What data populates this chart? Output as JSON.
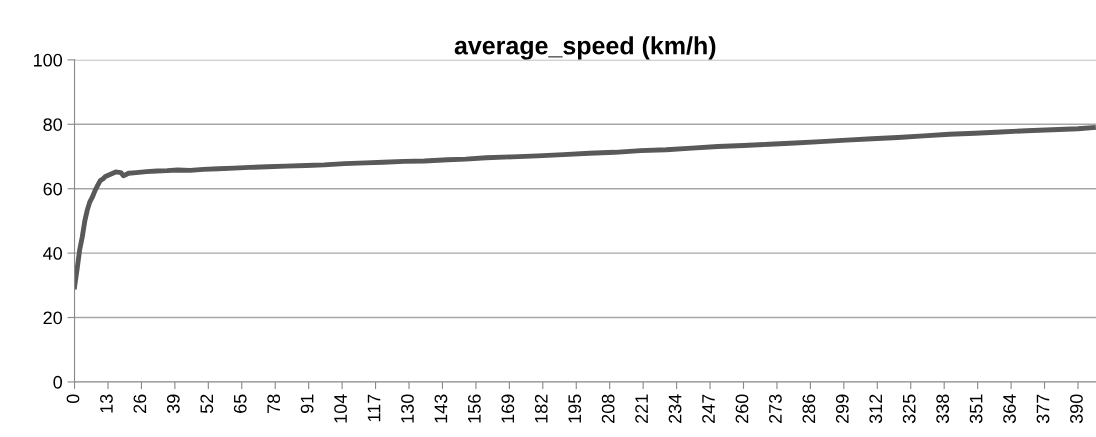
{
  "chart_data": {
    "type": "line",
    "title": "average_speed (km/h)",
    "x": [
      0,
      1,
      2,
      3,
      4,
      5,
      6,
      7,
      8,
      9,
      10,
      11,
      12,
      14,
      16,
      18,
      19,
      21,
      24,
      28,
      32,
      36,
      40,
      45,
      50,
      56,
      62,
      68,
      75,
      82,
      90,
      97,
      105,
      113,
      120,
      128,
      136,
      145,
      152,
      160,
      170,
      180,
      190,
      200,
      210,
      220,
      230,
      240,
      250,
      260,
      270,
      280,
      290,
      300,
      310,
      320,
      330,
      340,
      350,
      360,
      370,
      380,
      390,
      396
    ],
    "series": [
      {
        "color": "#595959",
        "values": [
          29.5,
          35,
          41,
          45,
          50,
          53.5,
          56,
          57.5,
          59.5,
          61,
          62.5,
          63,
          63.8,
          64.5,
          65.2,
          65,
          64,
          64.8,
          65,
          65.3,
          65.5,
          65.6,
          65.8,
          65.7,
          66,
          66.2,
          66.4,
          66.6,
          66.8,
          67,
          67.2,
          67.4,
          67.8,
          68,
          68.2,
          68.5,
          68.6,
          69,
          69.2,
          69.6,
          69.9,
          70.2,
          70.6,
          71,
          71.3,
          71.8,
          72.1,
          72.6,
          73.1,
          73.4,
          73.8,
          74.2,
          74.6,
          75.1,
          75.5,
          75.9,
          76.4,
          76.9,
          77.2,
          77.6,
          78,
          78.3,
          78.6,
          79
        ]
      }
    ],
    "xlim": [
      0,
      397
    ],
    "xticks": [
      0,
      13,
      26,
      39,
      52,
      65,
      78,
      91,
      104,
      117,
      130,
      143,
      156,
      169,
      182,
      195,
      208,
      221,
      234,
      247,
      260,
      273,
      286,
      299,
      312,
      325,
      338,
      351,
      364,
      377,
      390
    ],
    "ylim": [
      0,
      100
    ],
    "yticks": [
      0,
      20,
      40,
      60,
      80,
      100
    ],
    "grid": "y",
    "marker": "none",
    "line_style": "solid"
  }
}
